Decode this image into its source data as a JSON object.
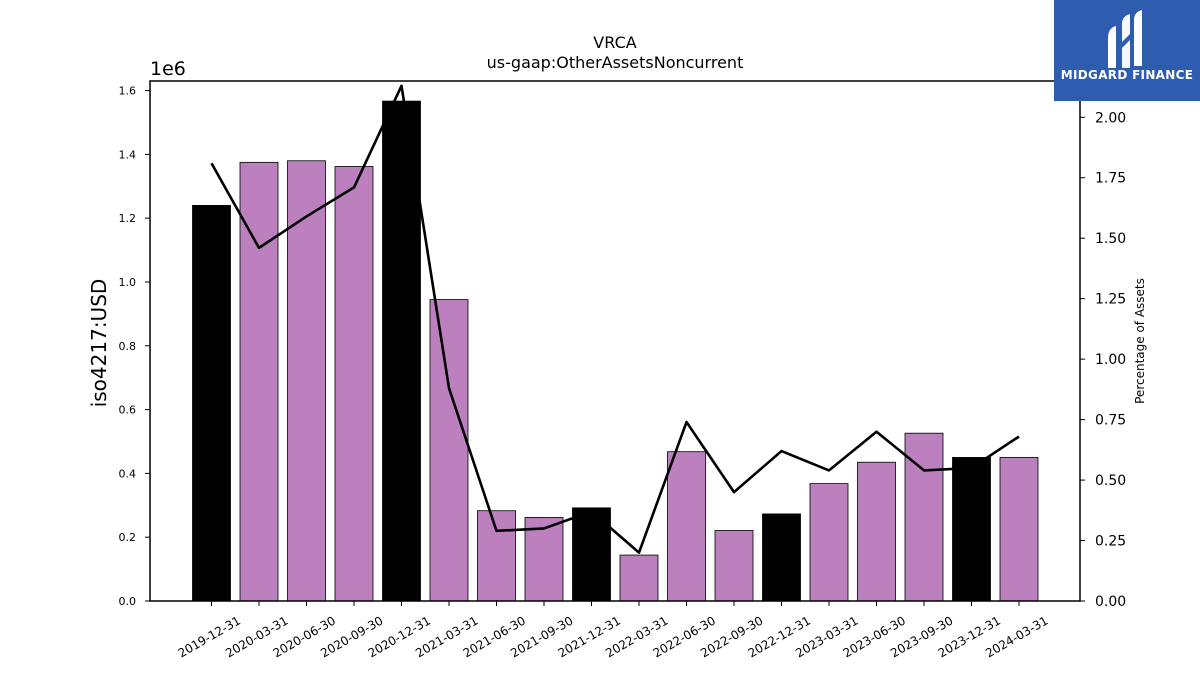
{
  "chart_data": {
    "type": "bar",
    "title": "VRCA",
    "subtitle": "us-gaap:OtherAssetsNoncurrent",
    "ylabel": "iso4217:USD",
    "y_offset_label": "1e6",
    "y2label": "Percentage of Assets",
    "ylim": [
      0,
      1630000
    ],
    "y2lim": [
      0,
      2.15
    ],
    "yticks": [
      "0.0",
      "0.2",
      "0.4",
      "0.6",
      "0.8",
      "1.0",
      "1.2",
      "1.4",
      "1.6"
    ],
    "y2ticks": [
      "0.00",
      "0.25",
      "0.50",
      "0.75",
      "1.00",
      "1.25",
      "1.50",
      "1.75",
      "2.00"
    ],
    "grid": false,
    "categories": [
      "2019-12-31",
      "2020-03-31",
      "2020-06-30",
      "2020-09-30",
      "2020-12-31",
      "2021-03-31",
      "2021-06-30",
      "2021-09-30",
      "2021-12-31",
      "2022-03-31",
      "2022-06-30",
      "2022-09-30",
      "2022-12-31",
      "2023-03-31",
      "2023-06-30",
      "2023-09-30",
      "2023-12-31",
      "2024-03-31"
    ],
    "series": [
      {
        "kind": "bar",
        "values": [
          1240000,
          1375000,
          1380000,
          1362000,
          1567000,
          945000,
          283000,
          262000,
          292000,
          144000,
          468000,
          221000,
          273000,
          368000,
          435000,
          526000,
          450000,
          450000
        ],
        "fiscal_year_end": [
          true,
          false,
          false,
          false,
          true,
          false,
          false,
          false,
          true,
          false,
          false,
          false,
          true,
          false,
          false,
          false,
          true,
          false
        ],
        "colors": {
          "fiscal_year_end": "#000000",
          "quarter": "#bb80bd"
        }
      },
      {
        "kind": "line",
        "axis": "right",
        "values": [
          1.81,
          1.46,
          1.59,
          1.71,
          2.13,
          0.88,
          0.29,
          0.3,
          0.37,
          0.2,
          0.74,
          0.45,
          0.62,
          0.54,
          0.7,
          0.54,
          0.55,
          0.68
        ],
        "color": "#000000"
      }
    ]
  },
  "brand": {
    "name": "MIDGARD FINANCE",
    "color": "#2e5caf"
  }
}
